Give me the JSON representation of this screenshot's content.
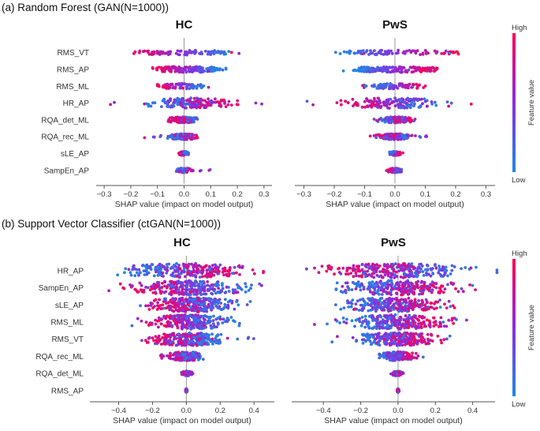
{
  "colors": {
    "low": "#1e88e5",
    "high": "#ff0052",
    "axis": "#555555",
    "zero": "#999999"
  },
  "sections": [
    {
      "title": "(a) Random Forest (GAN(N=1000))"
    },
    {
      "title": "(b) Support Vector Classifier (ctGAN(N=1000))"
    }
  ],
  "chart_data": [
    {
      "type": "scatter",
      "subtype": "shap-beeswarm",
      "title": "HC",
      "xlabel": "SHAP value (impact on model output)",
      "xlim": [
        -0.33,
        0.33
      ],
      "xticks": [
        -0.3,
        -0.2,
        -0.1,
        0.0,
        0.1,
        0.2,
        0.3
      ],
      "features": [
        "RMS_VT",
        "RMS_AP",
        "RMS_ML",
        "HR_AP",
        "RQA_det_ML",
        "RQA_rec_ML",
        "sLE_AP",
        "SampEn_AP"
      ],
      "colorbar": {
        "label": "Feature value",
        "high": "High",
        "low": "Low"
      },
      "series": [
        {
          "name": "RMS_VT",
          "low_center": 0.18,
          "high_center": -0.2,
          "spread": 0.012,
          "min": -0.21,
          "max": 0.21
        },
        {
          "name": "RMS_AP",
          "low_center": 0.12,
          "high_center": -0.1,
          "spread": 0.02,
          "min": -0.15,
          "max": 0.18
        },
        {
          "name": "RMS_ML",
          "low_center": 0.06,
          "high_center": -0.09,
          "spread": 0.015,
          "min": -0.1,
          "max": 0.11
        },
        {
          "name": "HR_AP",
          "low_center": -0.05,
          "high_center": 0.1,
          "spread": 0.05,
          "min": -0.29,
          "max": 0.3
        },
        {
          "name": "RQA_det_ML",
          "low_center": 0.02,
          "high_center": -0.03,
          "spread": 0.02,
          "min": -0.07,
          "max": 0.07
        },
        {
          "name": "RQA_rec_ML",
          "low_center": -0.02,
          "high_center": 0.02,
          "spread": 0.02,
          "min": -0.19,
          "max": 0.05
        },
        {
          "name": "sLE_AP",
          "low_center": 0.01,
          "high_center": -0.01,
          "spread": 0.006,
          "min": -0.02,
          "max": 0.03
        },
        {
          "name": "SampEn_AP",
          "low_center": -0.01,
          "high_center": 0.01,
          "spread": 0.01,
          "min": -0.03,
          "max": 0.1
        }
      ]
    },
    {
      "type": "scatter",
      "subtype": "shap-beeswarm",
      "title": "PwS",
      "xlabel": "SHAP value (impact on model output)",
      "xlim": [
        -0.33,
        0.33
      ],
      "xticks": [
        -0.3,
        -0.2,
        -0.1,
        0.0,
        0.1,
        0.2,
        0.3
      ],
      "features": [
        "RMS_VT",
        "RMS_AP",
        "RMS_ML",
        "HR_AP",
        "RQA_det_ML",
        "RQA_rec_ML",
        "sLE_AP",
        "SampEn_AP"
      ],
      "colorbar": {
        "label": "Feature value",
        "high": "High",
        "low": "Low"
      },
      "series": [
        {
          "name": "RMS_VT",
          "low_center": -0.18,
          "high_center": 0.2,
          "spread": 0.012,
          "min": -0.21,
          "max": 0.21
        },
        {
          "name": "RMS_AP",
          "low_center": -0.12,
          "high_center": 0.12,
          "spread": 0.02,
          "min": -0.18,
          "max": 0.15
        },
        {
          "name": "RMS_ML",
          "low_center": -0.08,
          "high_center": 0.09,
          "spread": 0.015,
          "min": -0.13,
          "max": 0.1
        },
        {
          "name": "HR_AP",
          "low_center": 0.1,
          "high_center": -0.1,
          "spread": 0.05,
          "min": -0.3,
          "max": 0.29
        },
        {
          "name": "RQA_det_ML",
          "low_center": -0.02,
          "high_center": 0.03,
          "spread": 0.02,
          "min": -0.07,
          "max": 0.07
        },
        {
          "name": "RQA_rec_ML",
          "low_center": 0.02,
          "high_center": -0.02,
          "spread": 0.02,
          "min": -0.12,
          "max": 0.19
        },
        {
          "name": "sLE_AP",
          "low_center": -0.01,
          "high_center": 0.01,
          "spread": 0.006,
          "min": -0.02,
          "max": 0.03
        },
        {
          "name": "SampEn_AP",
          "low_center": 0.01,
          "high_center": -0.01,
          "spread": 0.01,
          "min": -0.1,
          "max": 0.03
        }
      ]
    },
    {
      "type": "scatter",
      "subtype": "shap-beeswarm",
      "title": "HC",
      "xlabel": "SHAP value (impact on model output)",
      "xlim": [
        -0.57,
        0.52
      ],
      "xticks": [
        -0.4,
        -0.2,
        0.0,
        0.2,
        0.4
      ],
      "features": [
        "HR_AP",
        "SampEn_AP",
        "sLE_AP",
        "RMS_ML",
        "RMS_VT",
        "RQA_rec_ML",
        "RQA_det_ML",
        "RMS_AP"
      ],
      "colorbar": {
        "label": "Feature value",
        "high": "High",
        "low": "Low"
      },
      "series": [
        {
          "name": "HR_AP",
          "low_center": -0.2,
          "high_center": 0.2,
          "spread": 0.12,
          "min": -0.53,
          "max": 0.5
        },
        {
          "name": "SampEn_AP",
          "low_center": 0.18,
          "high_center": -0.18,
          "spread": 0.11,
          "min": -0.46,
          "max": 0.47
        },
        {
          "name": "sLE_AP",
          "low_center": 0.15,
          "high_center": -0.1,
          "spread": 0.09,
          "min": -0.4,
          "max": 0.38
        },
        {
          "name": "RMS_ML",
          "low_center": 0.15,
          "high_center": -0.12,
          "spread": 0.08,
          "min": -0.39,
          "max": 0.45
        },
        {
          "name": "RMS_VT",
          "low_center": 0.12,
          "high_center": -0.1,
          "spread": 0.07,
          "min": -0.28,
          "max": 0.41
        },
        {
          "name": "RQA_rec_ML",
          "low_center": 0.05,
          "high_center": -0.05,
          "spread": 0.04,
          "min": -0.18,
          "max": 0.1
        },
        {
          "name": "RQA_det_ML",
          "low_center": 0.01,
          "high_center": 0.0,
          "spread": 0.012,
          "min": -0.03,
          "max": 0.04
        },
        {
          "name": "RMS_AP",
          "low_center": 0.0,
          "high_center": 0.0,
          "spread": 0.002,
          "min": -0.005,
          "max": 0.005
        }
      ]
    },
    {
      "type": "scatter",
      "subtype": "shap-beeswarm",
      "title": "PwS",
      "xlabel": "SHAP value (impact on model output)",
      "xlim": [
        -0.57,
        0.52
      ],
      "xticks": [
        -0.4,
        -0.2,
        0.0,
        0.2,
        0.4
      ],
      "features": [
        "HR_AP",
        "SampEn_AP",
        "sLE_AP",
        "RMS_ML",
        "RMS_VT",
        "RQA_rec_ML",
        "RQA_det_ML",
        "RMS_AP"
      ],
      "colorbar": {
        "label": "Feature value",
        "high": "High",
        "low": "Low"
      },
      "series": [
        {
          "name": "HR_AP",
          "low_center": 0.2,
          "high_center": -0.2,
          "spread": 0.12,
          "min": -0.5,
          "max": 0.53
        },
        {
          "name": "SampEn_AP",
          "low_center": -0.18,
          "high_center": 0.18,
          "spread": 0.11,
          "min": -0.47,
          "max": 0.46
        },
        {
          "name": "sLE_AP",
          "low_center": -0.15,
          "high_center": 0.1,
          "spread": 0.09,
          "min": -0.38,
          "max": 0.4
        },
        {
          "name": "RMS_ML",
          "low_center": -0.15,
          "high_center": 0.12,
          "spread": 0.08,
          "min": -0.45,
          "max": 0.39
        },
        {
          "name": "RMS_VT",
          "low_center": -0.12,
          "high_center": 0.1,
          "spread": 0.07,
          "min": -0.41,
          "max": 0.28
        },
        {
          "name": "RQA_rec_ML",
          "low_center": -0.05,
          "high_center": 0.05,
          "spread": 0.04,
          "min": -0.1,
          "max": 0.18
        },
        {
          "name": "RQA_det_ML",
          "low_center": -0.01,
          "high_center": 0.0,
          "spread": 0.012,
          "min": -0.04,
          "max": 0.03
        },
        {
          "name": "RMS_AP",
          "low_center": 0.0,
          "high_center": 0.0,
          "spread": 0.002,
          "min": -0.005,
          "max": 0.005
        }
      ]
    }
  ]
}
